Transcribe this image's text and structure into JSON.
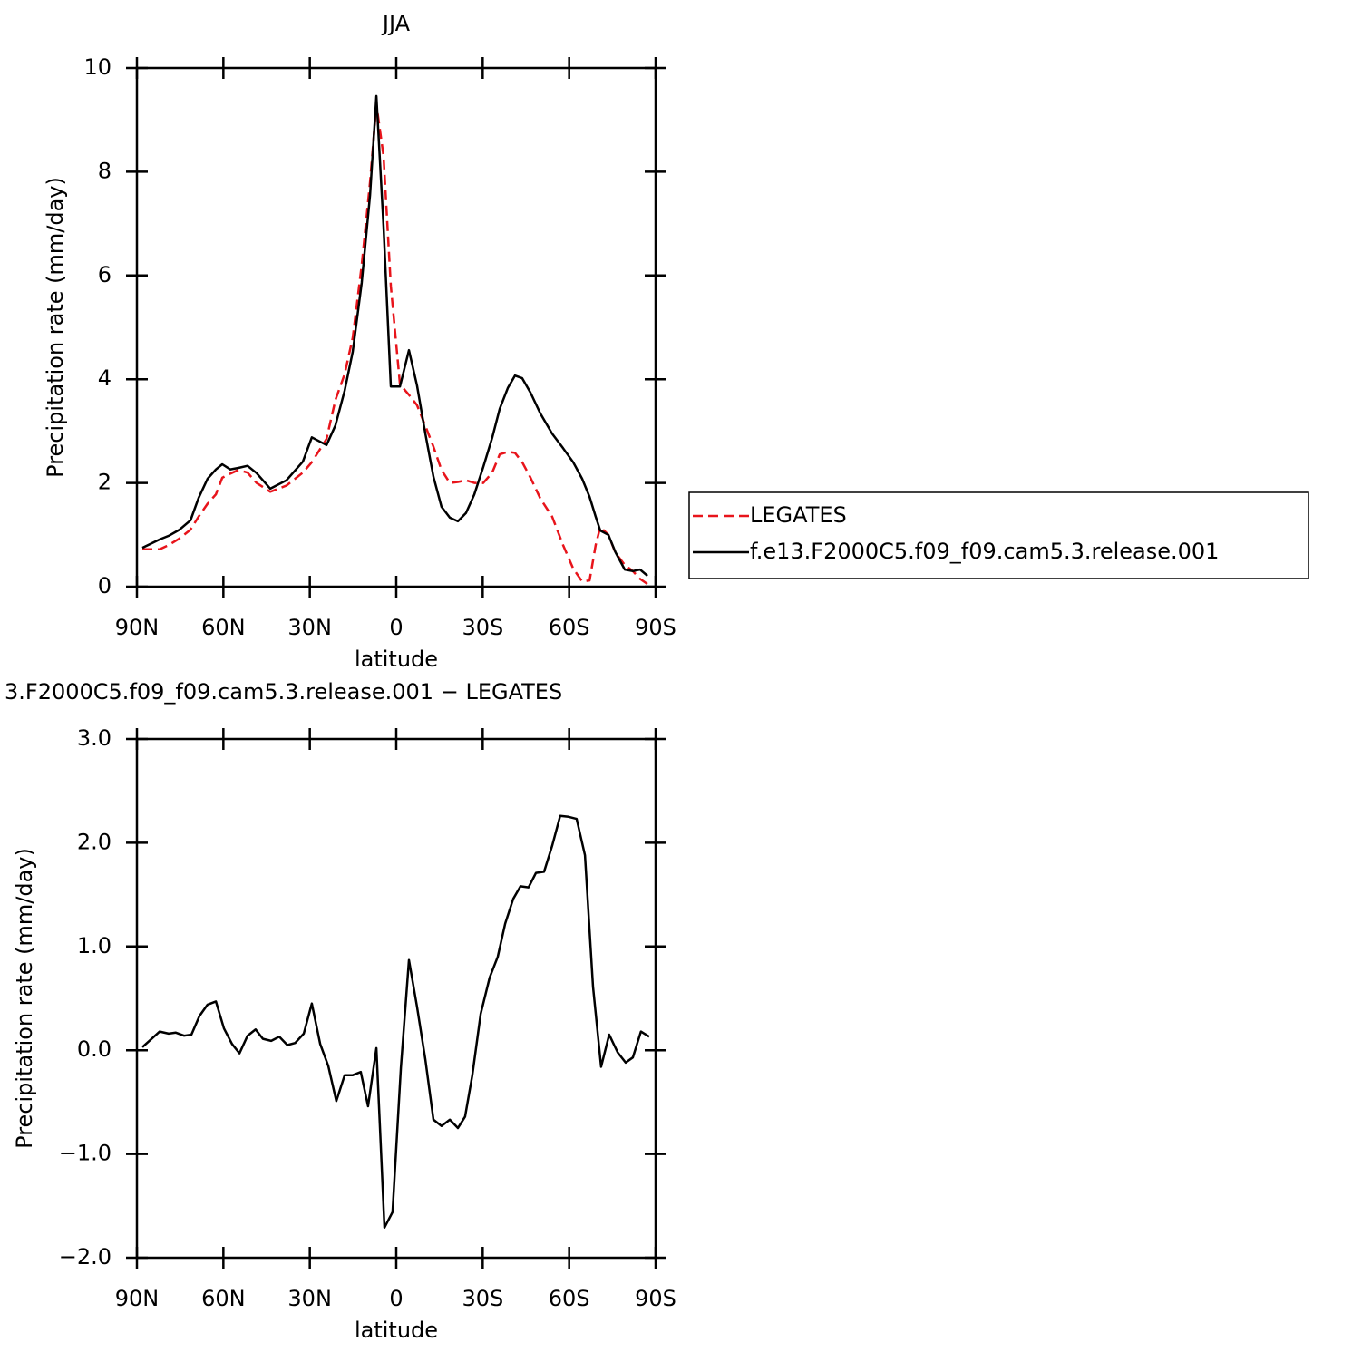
{
  "chart_data": [
    {
      "type": "line",
      "title": "JJA",
      "x_label": "latitude",
      "y_label": "Precipitation rate (mm/day)",
      "x": [
        88.1,
        82.1,
        79,
        75.2,
        71.4,
        68.6,
        65.5,
        62.6,
        60.4,
        57.6,
        54.8,
        51.6,
        48.5,
        43.7,
        38.1,
        32.4,
        29.3,
        24.2,
        21.1,
        17.9,
        15.1,
        12,
        9.1,
        6.9,
        4.4,
        1.9,
        -1.3,
        -4.4,
        -7.2,
        -10.1,
        -12.9,
        -15.7,
        -18.6,
        -21.4,
        -24.2,
        -27.1,
        -30.2,
        -33.3,
        -35.9,
        -38.7,
        -41.2,
        -43.7,
        -46.6,
        -50,
        -54.1,
        -57.9,
        -61.4,
        -64.5,
        -67.1,
        -69.2,
        -70.8,
        -73.6,
        -76.1,
        -79.3,
        -82.1,
        -84.6,
        -87.2
      ],
      "series": [
        {
          "name": "LEGATES",
          "color": "#e8141b",
          "line_style": "dashed",
          "values": [
            0.72,
            0.72,
            0.8,
            0.93,
            1.1,
            1.35,
            1.6,
            1.78,
            2.1,
            2.18,
            2.25,
            2.2,
            2.0,
            1.83,
            1.95,
            2.2,
            2.4,
            2.85,
            3.6,
            4.1,
            4.8,
            6.2,
            7.8,
            9.3,
            8.3,
            5.8,
            3.9,
            3.7,
            3.5,
            3.1,
            2.7,
            2.25,
            2.0,
            2.02,
            2.05,
            2.0,
            2.0,
            2.2,
            2.55,
            2.6,
            2.58,
            2.4,
            2.1,
            1.7,
            1.35,
            0.8,
            0.35,
            0.1,
            0.12,
            0.8,
            1.15,
            1.0,
            0.65,
            0.42,
            0.3,
            0.15,
            0.05
          ]
        },
        {
          "name": "f.e13.F2000C5.f09_f09.cam5.3.release.001",
          "color": "#000000",
          "line_style": "solid",
          "values": [
            0.75,
            0.91,
            0.98,
            1.1,
            1.28,
            1.71,
            2.08,
            2.26,
            2.36,
            2.26,
            2.29,
            2.33,
            2.19,
            1.89,
            2.05,
            2.41,
            2.88,
            2.73,
            3.11,
            3.78,
            4.53,
            5.86,
            7.55,
            9.46,
            6.94,
            3.86,
            3.86,
            4.56,
            3.88,
            2.95,
            2.12,
            1.54,
            1.33,
            1.26,
            1.42,
            1.78,
            2.31,
            2.87,
            3.43,
            3.83,
            4.07,
            4.02,
            3.74,
            3.34,
            2.95,
            2.67,
            2.4,
            2.08,
            1.73,
            1.35,
            1.08,
            1.0,
            0.66,
            0.33,
            0.3,
            0.33,
            0.21
          ]
        }
      ],
      "xlim": [
        90,
        -90
      ],
      "xticks": [
        {
          "value": 90,
          "label": "90N"
        },
        {
          "value": 60,
          "label": "60N"
        },
        {
          "value": 30,
          "label": "30N"
        },
        0,
        {
          "value": -30,
          "label": "30S"
        },
        {
          "value": -60,
          "label": "60S"
        },
        {
          "value": -90,
          "label": "90S"
        }
      ],
      "ylim": [
        0,
        10
      ],
      "yticks": [
        0,
        2,
        4,
        6,
        8,
        10
      ],
      "legend": "right"
    },
    {
      "type": "line",
      "title": "3.F2000C5.f09_f09.cam5.3.release.001  −  LEGATES",
      "x_label": "latitude",
      "y_label": "Precipitation rate (mm/day)",
      "x": [
        88.1,
        82.1,
        79,
        76.5,
        73.6,
        71.1,
        68.3,
        65.5,
        62.6,
        59.8,
        57,
        54.4,
        51.6,
        48.8,
        46.3,
        43.4,
        40.6,
        37.8,
        35.1,
        32.1,
        29.3,
        26.4,
        23.6,
        20.8,
        17.9,
        15.1,
        12.3,
        9.8,
        6.9,
        4.1,
        1.3,
        -1.6,
        -4.4,
        -7.2,
        -10.1,
        -12.9,
        -15.7,
        -18.6,
        -21.4,
        -23.9,
        -26.4,
        -29.3,
        -32.4,
        -35.2,
        -37.8,
        -40.6,
        -43.1,
        -45.9,
        -48.5,
        -51.3,
        -54.1,
        -56.9,
        -59.8,
        -62.6,
        -65.5,
        -68.3,
        -71.1,
        -73.9,
        -76.8,
        -79.6,
        -82.1,
        -84.9,
        -87.8
      ],
      "values": [
        0.03,
        0.18,
        0.16,
        0.17,
        0.14,
        0.15,
        0.33,
        0.44,
        0.47,
        0.21,
        0.06,
        -0.03,
        0.14,
        0.2,
        0.11,
        0.09,
        0.13,
        0.05,
        0.07,
        0.16,
        0.45,
        0.06,
        -0.15,
        -0.49,
        -0.24,
        -0.24,
        -0.21,
        -0.54,
        0.02,
        -1.71,
        -1.56,
        -0.17,
        0.87,
        0.42,
        -0.09,
        -0.67,
        -0.73,
        -0.67,
        -0.75,
        -0.64,
        -0.24,
        0.35,
        0.7,
        0.9,
        1.22,
        1.46,
        1.58,
        1.57,
        1.71,
        1.72,
        1.97,
        2.26,
        2.25,
        2.23,
        1.88,
        0.61,
        -0.16,
        0.15,
        -0.02,
        -0.12,
        -0.07,
        0.18,
        0.13
      ],
      "color": "#000000",
      "xlim": [
        90,
        -90
      ],
      "xticks": [
        {
          "value": 90,
          "label": "90N"
        },
        {
          "value": 60,
          "label": "60N"
        },
        {
          "value": 30,
          "label": "30N"
        },
        0,
        {
          "value": -30,
          "label": "30S"
        },
        {
          "value": -60,
          "label": "60S"
        },
        {
          "value": -90,
          "label": "90S"
        }
      ],
      "ylim": [
        -2,
        3
      ],
      "yticks": [
        {
          "value": -2,
          "label": "−2.0"
        },
        {
          "value": -1,
          "label": "−1.0"
        },
        {
          "value": 0,
          "label": "0.0"
        },
        {
          "value": 1,
          "label": "1.0"
        },
        {
          "value": 2,
          "label": "2.0"
        },
        {
          "value": 3,
          "label": "3.0"
        }
      ]
    }
  ]
}
